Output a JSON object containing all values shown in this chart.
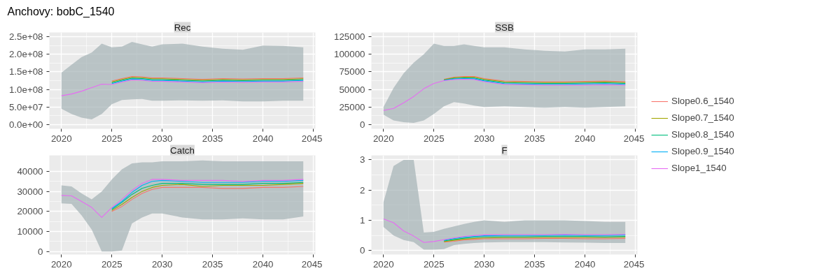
{
  "chart_data": [
    {
      "type": "line",
      "title": "Anchovy: bobC_1540",
      "subtitle": "Rec",
      "x": [
        2020,
        2021,
        2022,
        2023,
        2024,
        2025,
        2026,
        2027,
        2028,
        2029,
        2030,
        2032,
        2034,
        2036,
        2038,
        2040,
        2042,
        2044
      ],
      "xlim": [
        2018.8,
        2045.2
      ],
      "xticks": [
        2020,
        2025,
        2030,
        2035,
        2040,
        2045
      ],
      "ylim": [
        -12000000,
        262000000
      ],
      "yticks": [
        {
          "value": 0,
          "label": "0.0e+00"
        },
        {
          "value": 50000000,
          "label": "5.0e+07"
        },
        {
          "value": 100000000,
          "label": "1.0e+08"
        },
        {
          "value": 150000000,
          "label": "1.5e+08"
        },
        {
          "value": 200000000,
          "label": "2.0e+08"
        },
        {
          "value": 250000000,
          "label": "2.5e+08"
        }
      ],
      "grid": true,
      "series": [
        {
          "color": "#f8766d",
          "values": [
            null,
            null,
            null,
            null,
            null,
            124000000,
            131000000,
            137000000,
            136000000,
            133000000,
            133000000,
            131000000,
            129000000,
            131000000,
            130000000,
            131000000,
            131000000,
            133000000
          ],
          "lower": [
            45000000,
            30000000,
            20000000,
            15000000,
            30000000,
            58000000,
            70000000,
            72000000,
            73000000,
            68000000,
            68000000,
            69000000,
            68000000,
            69000000,
            66000000,
            66000000,
            68000000,
            68000000
          ],
          "upper": [
            148000000,
            170000000,
            192000000,
            205000000,
            230000000,
            220000000,
            222000000,
            235000000,
            228000000,
            222000000,
            228000000,
            230000000,
            222000000,
            216000000,
            213000000,
            225000000,
            224000000,
            220000000
          ]
        },
        {
          "color": "#a3a500",
          "values": [
            null,
            null,
            null,
            null,
            null,
            121500000,
            128500000,
            134500000,
            133500000,
            130500000,
            130500000,
            128500000,
            126500000,
            128500000,
            127500000,
            128500000,
            128500000,
            130500000
          ]
        },
        {
          "color": "#00bf7d",
          "values": [
            null,
            null,
            null,
            null,
            null,
            119000000,
            126000000,
            132000000,
            131000000,
            128000000,
            128000000,
            126000000,
            124000000,
            126000000,
            125000000,
            126000000,
            126000000,
            128000000
          ]
        },
        {
          "color": "#00b0f6",
          "values": [
            null,
            null,
            null,
            null,
            null,
            116500000,
            123500000,
            129500000,
            128500000,
            125500000,
            125500000,
            123500000,
            121500000,
            123500000,
            122500000,
            123500000,
            123500000,
            125500000
          ]
        },
        {
          "color": "#e76bf3",
          "values": [
            82000000,
            87000000,
            95000000,
            105000000,
            115000000,
            114000000,
            121000000,
            127000000,
            126000000,
            123000000,
            123000000,
            121000000,
            119000000,
            121000000,
            120000000,
            121000000,
            121000000,
            123000000
          ]
        }
      ]
    },
    {
      "type": "line",
      "subtitle": "SSB",
      "x": [
        2020,
        2021,
        2022,
        2023,
        2024,
        2025,
        2026,
        2027,
        2028,
        2029,
        2030,
        2032,
        2034,
        2036,
        2038,
        2040,
        2042,
        2044
      ],
      "xlim": [
        2018.8,
        2045.2
      ],
      "xticks": [
        2020,
        2025,
        2030,
        2035,
        2040,
        2045
      ],
      "ylim": [
        -6000,
        131000
      ],
      "yticks": [
        0,
        25000,
        50000,
        75000,
        100000,
        125000
      ],
      "grid": true,
      "legend": "right",
      "series": [
        {
          "name": "Slope0.6_1540",
          "color": "#f8766d",
          "values": [
            null,
            null,
            null,
            null,
            null,
            null,
            64500,
            67500,
            68500,
            68500,
            65500,
            62000,
            61500,
            61000,
            61000,
            61500,
            62000,
            61000
          ],
          "lower": [
            14000,
            6000,
            3500,
            2500,
            6000,
            15000,
            26000,
            32000,
            30000,
            27000,
            25000,
            26000,
            25000,
            24000,
            25000,
            24000,
            25000,
            26000
          ],
          "upper": [
            25000,
            52000,
            73000,
            88000,
            100000,
            115000,
            112000,
            112000,
            114000,
            112000,
            110000,
            110000,
            107000,
            105000,
            104000,
            107000,
            107000,
            108000
          ]
        },
        {
          "name": "Slope0.7_1540",
          "color": "#a3a500",
          "values": [
            null,
            null,
            null,
            null,
            null,
            null,
            64000,
            66600,
            67500,
            67400,
            64400,
            60800,
            60300,
            59800,
            59800,
            60300,
            60800,
            59800
          ]
        },
        {
          "name": "Slope0.8_1540",
          "color": "#00bf7d",
          "values": [
            null,
            null,
            null,
            null,
            null,
            null,
            63500,
            65800,
            66500,
            66200,
            63200,
            59500,
            59000,
            58500,
            58500,
            59000,
            59500,
            58500
          ]
        },
        {
          "name": "Slope0.9_1540",
          "color": "#00b0f6",
          "values": [
            null,
            null,
            null,
            null,
            null,
            null,
            63000,
            64900,
            65500,
            65100,
            62100,
            58300,
            57800,
            57300,
            57300,
            57800,
            58300,
            57300
          ]
        },
        {
          "name": "Slope1_1540",
          "color": "#e76bf3",
          "values": [
            20000,
            23000,
            31000,
            40000,
            51000,
            58500,
            62500,
            64000,
            64500,
            64000,
            61000,
            57000,
            56500,
            56000,
            56000,
            56000,
            56500,
            56000
          ]
        }
      ]
    },
    {
      "type": "line",
      "subtitle": "Catch",
      "x": [
        2020,
        2021,
        2022,
        2023,
        2024,
        2025,
        2026,
        2027,
        2028,
        2029,
        2030,
        2032,
        2034,
        2036,
        2038,
        2040,
        2042,
        2044
      ],
      "xlim": [
        2018.8,
        2045.2
      ],
      "xticks": [
        2020,
        2025,
        2030,
        2035,
        2040,
        2045
      ],
      "ylim": [
        -1500,
        48000
      ],
      "yticks": [
        0,
        10000,
        20000,
        30000,
        40000
      ],
      "grid": true,
      "series": [
        {
          "color": "#f8766d",
          "values": [
            null,
            null,
            null,
            null,
            null,
            20000,
            22500,
            26000,
            29000,
            31000,
            32000,
            32000,
            32000,
            31500,
            31500,
            32000,
            32000,
            32500
          ],
          "lower": [
            24000,
            23800,
            18000,
            11000,
            0,
            0,
            500,
            14000,
            17000,
            19000,
            19000,
            17000,
            16000,
            16000,
            16500,
            16000,
            16000,
            17500
          ],
          "upper": [
            33000,
            32500,
            29000,
            26000,
            30000,
            36000,
            41000,
            44000,
            44500,
            44500,
            45000,
            45000,
            45500,
            45000,
            45000,
            45000,
            45000,
            45000
          ]
        },
        {
          "color": "#a3a500",
          "values": [
            null,
            null,
            null,
            null,
            null,
            20500,
            23500,
            27000,
            30000,
            32000,
            33000,
            33500,
            32500,
            33000,
            33000,
            33000,
            33500,
            34000
          ]
        },
        {
          "color": "#00bf7d",
          "values": [
            null,
            null,
            null,
            null,
            null,
            21000,
            24500,
            28500,
            31500,
            33000,
            34000,
            34000,
            33500,
            33500,
            33500,
            34000,
            34000,
            34500
          ]
        },
        {
          "color": "#00b0f6",
          "values": [
            null,
            null,
            null,
            null,
            null,
            21500,
            25000,
            29500,
            33000,
            35000,
            35500,
            35000,
            34500,
            34500,
            34500,
            35000,
            35000,
            35500
          ]
        },
        {
          "color": "#e76bf3",
          "values": [
            28000,
            27800,
            25000,
            22000,
            17000,
            22000,
            26000,
            30500,
            34000,
            36000,
            36000,
            35500,
            35500,
            35500,
            35000,
            35500,
            35500,
            36000
          ]
        }
      ]
    },
    {
      "type": "line",
      "subtitle": "F",
      "x": [
        2020,
        2021,
        2022,
        2023,
        2024,
        2025,
        2026,
        2027,
        2028,
        2029,
        2030,
        2032,
        2034,
        2036,
        2038,
        2040,
        2042,
        2044
      ],
      "xlim": [
        2018.8,
        2045.2
      ],
      "xticks": [
        2020,
        2025,
        2030,
        2035,
        2040,
        2045
      ],
      "ylim": [
        -0.13,
        3.15
      ],
      "yticks": [
        0,
        1,
        2,
        3
      ],
      "grid": true,
      "series": [
        {
          "color": "#f8766d",
          "values": [
            null,
            null,
            null,
            null,
            null,
            null,
            0.28,
            0.31,
            0.35,
            0.37,
            0.39,
            0.39,
            0.39,
            0.4,
            0.4,
            0.39,
            0.39,
            0.4
          ],
          "lower": [
            0.78,
            0.5,
            0.35,
            0.28,
            0.03,
            0.03,
            0.05,
            0.18,
            0.22,
            0.25,
            0.27,
            0.28,
            0.28,
            0.28,
            0.27,
            0.26,
            0.25,
            0.25
          ],
          "upper": [
            1.6,
            2.8,
            3.0,
            3.0,
            0.6,
            0.62,
            0.72,
            0.8,
            0.88,
            0.95,
            1.0,
            0.95,
            1.0,
            1.0,
            1.0,
            0.98,
            0.95,
            0.95
          ]
        },
        {
          "color": "#a3a500",
          "values": [
            null,
            null,
            null,
            null,
            null,
            null,
            0.3,
            0.34,
            0.38,
            0.4,
            0.42,
            0.43,
            0.43,
            0.43,
            0.43,
            0.43,
            0.43,
            0.44
          ]
        },
        {
          "color": "#00bf7d",
          "values": [
            null,
            null,
            null,
            null,
            null,
            null,
            0.32,
            0.37,
            0.41,
            0.44,
            0.46,
            0.46,
            0.46,
            0.47,
            0.47,
            0.47,
            0.46,
            0.47
          ]
        },
        {
          "color": "#00b0f6",
          "values": [
            null,
            null,
            null,
            null,
            null,
            null,
            0.34,
            0.4,
            0.44,
            0.47,
            0.49,
            0.5,
            0.5,
            0.5,
            0.51,
            0.5,
            0.5,
            0.51
          ]
        },
        {
          "color": "#e76bf3",
          "values": [
            1.05,
            0.92,
            0.65,
            0.48,
            0.27,
            0.3,
            0.36,
            0.42,
            0.47,
            0.5,
            0.52,
            0.53,
            0.53,
            0.53,
            0.54,
            0.53,
            0.53,
            0.54
          ]
        }
      ]
    }
  ]
}
